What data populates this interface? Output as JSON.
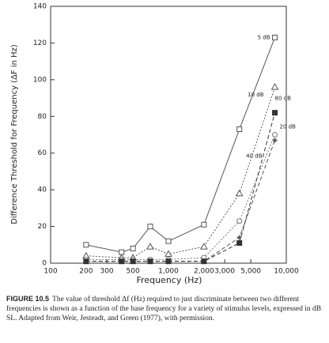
{
  "chart_data": {
    "type": "line",
    "y_label": "Difference Threshold for Frequency (ΔF in Hz)",
    "x_label": "Frequency (Hz)",
    "log_x": true,
    "x": [
      200,
      400,
      500,
      700,
      1000,
      2000,
      4000,
      8000
    ],
    "xlim": [
      100,
      10000
    ],
    "xticks": [
      100,
      200,
      300,
      500,
      {
        "value": 1000,
        "label": "1,000"
      },
      {
        "value": 2000,
        "label": "2,000"
      },
      {
        "value": 3000,
        "label": "3,000"
      },
      {
        "value": 5000,
        "label": "5,000"
      },
      {
        "value": 10000,
        "label": "10,000"
      }
    ],
    "ylim": [
      0,
      140
    ],
    "yticks": [
      0,
      20,
      40,
      60,
      80,
      100,
      120,
      140
    ],
    "series": [
      {
        "name": "5 dB",
        "color": "#555555",
        "marker": "square",
        "line_style": "solid",
        "values": [
          10,
          6,
          8,
          20,
          12,
          21,
          73,
          123
        ]
      },
      {
        "name": "10 dB",
        "color": "#555555",
        "marker": "triangle",
        "line_style": "dotted",
        "values": [
          4,
          3,
          3,
          9,
          5,
          9,
          38,
          96
        ]
      },
      {
        "name": "20 dB",
        "color": "#777777",
        "marker": "circle",
        "line_style": "dotted",
        "values": [
          2,
          2,
          2,
          2,
          2,
          3,
          23,
          70
        ]
      },
      {
        "name": "40 dB",
        "color": "#555555",
        "marker": "asterisk",
        "line_style": "dashed",
        "values": [
          1,
          1,
          1,
          1,
          1,
          1,
          14,
          67
        ]
      },
      {
        "name": "80 dB",
        "color": "#333333",
        "marker": "filled-square",
        "line_style": "dashed",
        "values": [
          1,
          1,
          1,
          1,
          1,
          1,
          11,
          82
        ]
      }
    ],
    "caption_label": "FIGURE 10.5",
    "caption": "The value of threshold Δf (Hz) required to just discriminate between two different frequencies is shown as a function of the base frequency for a variety of stimulus levels, expressed in dB SL. Adapted from Weir, Jesteadt, and Green (1977), with permission."
  }
}
